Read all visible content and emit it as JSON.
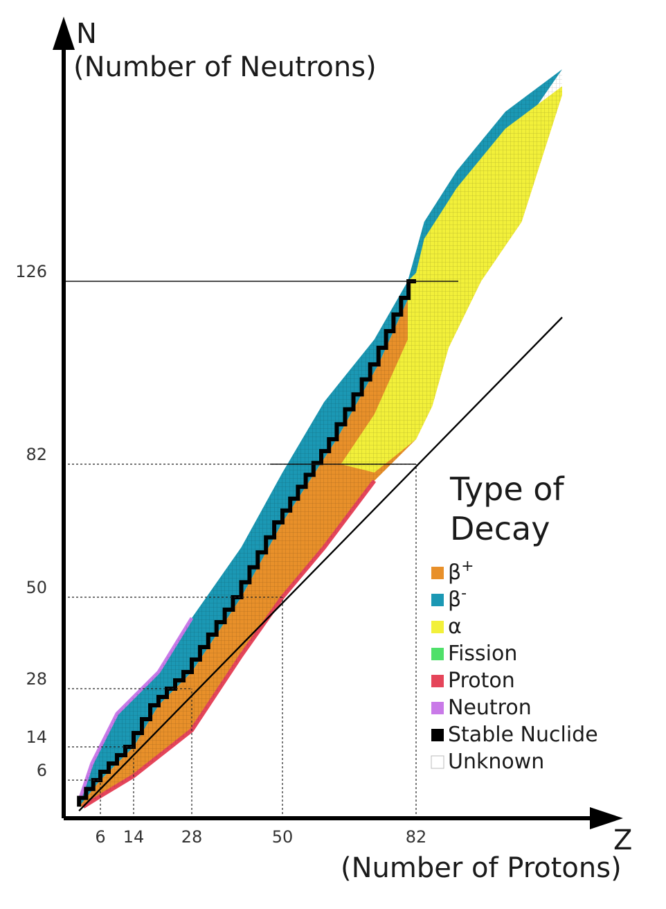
{
  "chart_data": {
    "type": "heatmap",
    "x_axis": {
      "title_symbol": "Z",
      "title": "(Number of Protons)",
      "ticks": [
        6,
        14,
        28,
        50,
        82
      ]
    },
    "y_axis": {
      "title_symbol": "N",
      "title": "(Number of Neutrons)",
      "ticks": [
        6,
        14,
        28,
        50,
        82,
        126
      ]
    },
    "magic_numbers": [
      6,
      14,
      28,
      50,
      82,
      126
    ],
    "legend": {
      "title_line1": "Type of",
      "title_line2": "Decay",
      "items": [
        {
          "key": "beta_plus",
          "label": "β",
          "sup": "+",
          "color": "#e8902a"
        },
        {
          "key": "beta_minus",
          "label": "β",
          "sup": "-",
          "color": "#1b98b4"
        },
        {
          "key": "alpha",
          "label": "α",
          "sup": "",
          "color": "#f2f03a"
        },
        {
          "key": "fission",
          "label": "Fission",
          "sup": "",
          "color": "#4fe06a"
        },
        {
          "key": "proton",
          "label": "Proton",
          "sup": "",
          "color": "#e5455a"
        },
        {
          "key": "neutron",
          "label": "Neutron",
          "sup": "",
          "color": "#c97ae8"
        },
        {
          "key": "stable",
          "label": "Stable Nuclide",
          "sup": "",
          "color": "#000000"
        },
        {
          "key": "unknown",
          "label": "Unknown",
          "sup": "",
          "color": "#ffffff"
        }
      ]
    },
    "stability_band": {
      "description_points_ZN": [
        [
          1,
          1
        ],
        [
          6,
          6
        ],
        [
          14,
          14
        ],
        [
          20,
          24
        ],
        [
          28,
          32
        ],
        [
          40,
          50
        ],
        [
          50,
          68
        ],
        [
          63,
          88
        ],
        [
          73,
          106
        ],
        [
          82,
          126
        ]
      ]
    },
    "nuclide_region": {
      "upper_edge_ZN": [
        [
          1,
          2
        ],
        [
          4,
          10
        ],
        [
          10,
          22
        ],
        [
          20,
          32
        ],
        [
          28,
          45
        ],
        [
          40,
          62
        ],
        [
          50,
          80
        ],
        [
          60,
          97
        ],
        [
          72,
          112
        ],
        [
          80,
          126
        ],
        [
          84,
          140
        ],
        [
          92,
          152
        ],
        [
          104,
          166
        ],
        [
          118,
          176
        ]
      ],
      "lower_edge_ZN": [
        [
          2,
          1
        ],
        [
          6,
          3
        ],
        [
          14,
          7
        ],
        [
          28,
          18
        ],
        [
          40,
          36
        ],
        [
          50,
          50
        ],
        [
          60,
          62
        ],
        [
          72,
          78
        ],
        [
          82,
          88
        ],
        [
          86,
          96
        ],
        [
          90,
          110
        ],
        [
          98,
          126
        ],
        [
          108,
          140
        ],
        [
          118,
          170
        ]
      ]
    },
    "reference_line": "N = Z"
  }
}
